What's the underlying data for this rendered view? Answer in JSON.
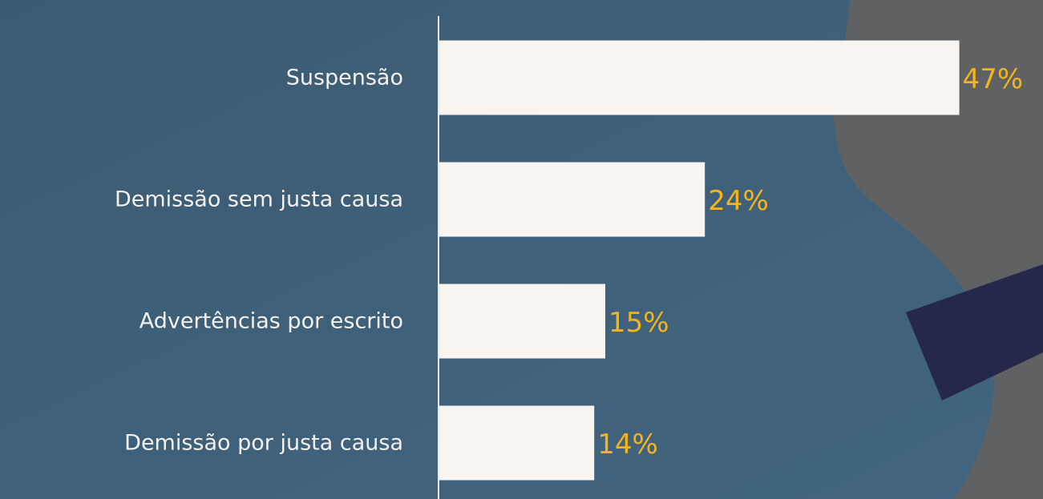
{
  "chart_data": {
    "type": "bar",
    "orientation": "horizontal",
    "categories": [
      "Suspensão",
      "Demissão sem justa causa",
      "Advertências por escrito",
      "Demissão por justa causa"
    ],
    "values": [
      47,
      24,
      15,
      14
    ],
    "value_labels": [
      "47%",
      "24%",
      "15%",
      "14%"
    ],
    "color": "#f8f4ef",
    "label_color": "#f4b41c",
    "xlim": [
      0,
      50
    ]
  }
}
